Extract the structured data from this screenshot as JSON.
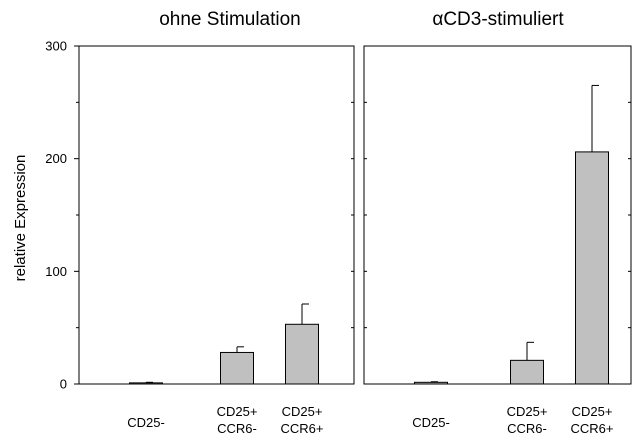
{
  "chart_data": [
    {
      "type": "bar",
      "title": "ohne Stimulation",
      "ylabel": "relative Expression",
      "xlabel": "",
      "ylim": [
        0,
        300
      ],
      "yticks": [
        "0",
        "100",
        "200",
        "300"
      ],
      "categories": [
        {
          "lines": [
            "CD25-"
          ]
        },
        {
          "lines": [
            "CD25+",
            "CCR6-"
          ]
        },
        {
          "lines": [
            "CD25+",
            "CCR6+"
          ]
        }
      ],
      "values": [
        1,
        28,
        53
      ],
      "error_upper": [
        0.5,
        5,
        18
      ],
      "bar_color": "#c0c0c0",
      "grid": false
    },
    {
      "type": "bar",
      "title": "αCD3-stimuliert",
      "ylabel": "",
      "xlabel": "",
      "ylim": [
        0,
        300
      ],
      "yticks": [],
      "categories": [
        {
          "lines": [
            "CD25-"
          ]
        },
        {
          "lines": [
            "CD25+",
            "CCR6-"
          ]
        },
        {
          "lines": [
            "CD25+",
            "CCR6+"
          ]
        }
      ],
      "values": [
        1.5,
        21,
        206
      ],
      "error_upper": [
        0.5,
        16,
        59
      ],
      "bar_color": "#c0c0c0",
      "grid": false
    }
  ]
}
